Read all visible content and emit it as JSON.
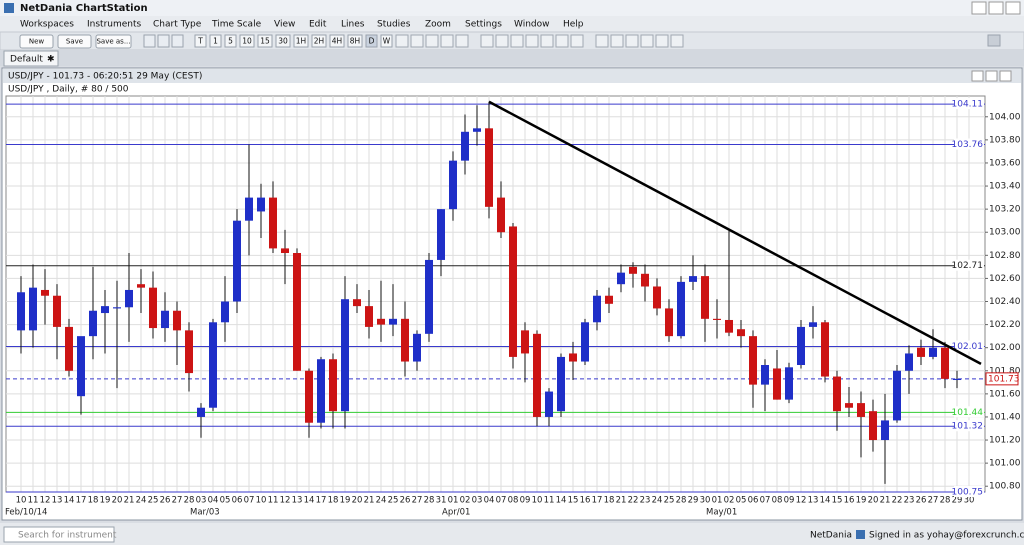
{
  "app": {
    "title": "NetDania ChartStation",
    "menu": [
      "Workspaces",
      "Instruments",
      "Chart Type",
      "Time Scale",
      "View",
      "Edit",
      "Lines",
      "Studies",
      "Zoom",
      "Settings",
      "Window",
      "Help"
    ],
    "buttons": [
      "New",
      "Save",
      "Save as..."
    ],
    "periods": [
      "T",
      "1",
      "5",
      "10",
      "15",
      "30",
      "1H",
      "2H",
      "4H",
      "8H",
      "D",
      "W",
      "M"
    ],
    "tab": "Default"
  },
  "window": {
    "title": "USD/JPY - 101.73 - 06:20:51  29 May (CEST)"
  },
  "chart_data": {
    "type": "candlestick",
    "subtitle": "USD/JPY , Daily, # 80 / 500",
    "categories": [
      "10",
      "11",
      "12",
      "13",
      "14",
      "17",
      "18",
      "19",
      "20",
      "21",
      "24",
      "25",
      "26",
      "27",
      "28",
      "03",
      "04",
      "05",
      "06",
      "07",
      "10",
      "11",
      "12",
      "13",
      "14",
      "17",
      "18",
      "19",
      "20",
      "21",
      "24",
      "25",
      "26",
      "27",
      "28",
      "31",
      "01",
      "02",
      "03",
      "04",
      "07",
      "08",
      "09",
      "10",
      "11",
      "14",
      "15",
      "16",
      "17",
      "18",
      "21",
      "22",
      "23",
      "24",
      "25",
      "28",
      "29",
      "30",
      "01",
      "02",
      "05",
      "06",
      "07",
      "08",
      "09",
      "12",
      "13",
      "14",
      "15",
      "16",
      "19",
      "20",
      "21",
      "22",
      "23",
      "26",
      "27",
      "28",
      "29",
      "30"
    ],
    "x_group_labels": [
      "Feb/10/14",
      null,
      null,
      null,
      null,
      null,
      null,
      null,
      null,
      null,
      null,
      null,
      null,
      null,
      null,
      "Mar/03",
      null,
      null,
      null,
      null,
      null,
      null,
      null,
      null,
      null,
      null,
      null,
      null,
      null,
      null,
      null,
      null,
      null,
      null,
      null,
      null,
      "Apr/01",
      null,
      null,
      null,
      null,
      null,
      null,
      null,
      null,
      null,
      null,
      null,
      null,
      null,
      null,
      null,
      null,
      null,
      null,
      null,
      null,
      null,
      "May/01",
      null,
      null,
      null,
      null,
      null,
      null,
      null,
      null,
      null,
      null,
      null,
      null,
      null,
      null,
      null,
      null,
      null,
      null,
      null,
      null,
      null
    ],
    "open": [
      102.15,
      102.15,
      102.5,
      102.45,
      102.18,
      101.58,
      102.1,
      102.3,
      102.34,
      102.35,
      102.55,
      102.52,
      102.17,
      102.32,
      102.15,
      101.4,
      101.48,
      102.22,
      102.4,
      103.1,
      103.18,
      103.3,
      102.86,
      102.82,
      101.8,
      101.35,
      101.9,
      101.45,
      102.42,
      102.36,
      102.25,
      102.2,
      102.25,
      101.88,
      102.12,
      102.76,
      103.2,
      103.62,
      103.87,
      103.9,
      103.3,
      103.05,
      102.15,
      102.12,
      101.4,
      101.45,
      101.95,
      101.88,
      102.22,
      102.45,
      102.55,
      102.7,
      102.64,
      102.53,
      102.34,
      102.1,
      102.57,
      102.62,
      102.25,
      102.24,
      102.16,
      102.1,
      101.68,
      101.82,
      101.55,
      101.85,
      102.18,
      102.22,
      101.75,
      101.52,
      101.52,
      101.45,
      101.2,
      101.37,
      101.8,
      102.0,
      101.92,
      102.0,
      101.72,
      null
    ],
    "high": [
      102.62,
      102.72,
      102.68,
      102.55,
      102.25,
      102.08,
      102.7,
      102.5,
      102.58,
      102.82,
      102.68,
      102.66,
      102.48,
      102.4,
      102.22,
      101.52,
      102.25,
      102.62,
      103.2,
      103.76,
      103.42,
      103.44,
      103.02,
      102.86,
      101.82,
      101.92,
      101.95,
      102.62,
      102.55,
      102.5,
      102.58,
      102.55,
      102.4,
      102.15,
      102.82,
      103.2,
      103.7,
      104.02,
      104.1,
      104.13,
      103.44,
      103.08,
      102.22,
      102.15,
      101.65,
      101.95,
      102.05,
      102.25,
      102.5,
      102.52,
      102.72,
      102.74,
      102.72,
      102.6,
      102.42,
      102.62,
      102.8,
      102.72,
      102.42,
      103.02,
      102.24,
      102.15,
      101.9,
      101.98,
      101.87,
      102.24,
      102.36,
      102.24,
      101.8,
      101.66,
      101.62,
      101.55,
      101.6,
      101.85,
      102.02,
      102.07,
      102.16,
      102.05,
      101.8,
      null
    ],
    "low": [
      101.95,
      102.0,
      102.2,
      101.9,
      101.75,
      101.42,
      101.9,
      101.95,
      101.65,
      102.05,
      102.3,
      102.08,
      102.05,
      101.85,
      101.62,
      101.22,
      101.45,
      102.05,
      102.3,
      102.8,
      102.95,
      102.82,
      102.55,
      101.8,
      101.22,
      101.3,
      101.3,
      101.3,
      102.3,
      102.08,
      102.05,
      102.1,
      101.75,
      101.8,
      102.05,
      102.62,
      103.1,
      103.5,
      103.75,
      103.12,
      102.95,
      101.82,
      101.7,
      101.32,
      101.32,
      101.4,
      101.72,
      101.85,
      102.15,
      102.3,
      102.48,
      102.52,
      102.4,
      102.28,
      102.05,
      102.08,
      102.5,
      102.05,
      102.08,
      102.1,
      102.0,
      101.48,
      101.45,
      101.55,
      101.52,
      101.82,
      102.08,
      101.7,
      101.28,
      101.4,
      101.05,
      101.1,
      100.82,
      101.35,
      101.6,
      101.85,
      101.9,
      101.65,
      101.65,
      null
    ],
    "close": [
      102.48,
      102.52,
      102.45,
      102.18,
      101.8,
      102.1,
      102.32,
      102.36,
      102.35,
      102.5,
      102.52,
      102.17,
      102.32,
      102.15,
      101.78,
      101.48,
      102.22,
      102.4,
      103.1,
      103.3,
      103.3,
      102.86,
      102.82,
      101.8,
      101.35,
      101.9,
      101.45,
      102.42,
      102.36,
      102.18,
      102.2,
      102.25,
      101.88,
      102.12,
      102.76,
      103.2,
      103.62,
      103.87,
      103.9,
      103.22,
      103.0,
      101.92,
      101.95,
      101.4,
      101.62,
      101.92,
      101.88,
      102.22,
      102.45,
      102.38,
      102.65,
      102.64,
      102.53,
      102.34,
      102.1,
      102.57,
      102.62,
      102.25,
      102.24,
      102.13,
      102.1,
      101.68,
      101.85,
      101.55,
      101.83,
      102.18,
      102.22,
      101.75,
      101.45,
      101.48,
      101.4,
      101.2,
      101.37,
      101.8,
      101.95,
      101.92,
      102.0,
      101.73,
      101.73,
      null
    ],
    "up_color": "#1f2fc8",
    "down_color": "#cc1414",
    "ylim": [
      100.75,
      104.18
    ],
    "yticks": [
      {
        "value": 100.8,
        "label": "100.80"
      },
      {
        "value": 101,
        "label": "101.00"
      },
      {
        "value": 101.2,
        "label": "101.20"
      },
      {
        "value": 101.4,
        "label": "101.40"
      },
      {
        "value": 101.6,
        "label": "101.60"
      },
      {
        "value": 101.8,
        "label": "101.80"
      },
      {
        "value": 102,
        "label": "102.00"
      },
      {
        "value": 102.2,
        "label": "102.20"
      },
      {
        "value": 102.4,
        "label": "102.40"
      },
      {
        "value": 102.6,
        "label": "102.60"
      },
      {
        "value": 102.8,
        "label": "102.80"
      },
      {
        "value": 103,
        "label": "103.00"
      },
      {
        "value": 103.2,
        "label": "103.20"
      },
      {
        "value": 103.4,
        "label": "103.40"
      },
      {
        "value": 103.6,
        "label": "103.60"
      },
      {
        "value": 103.8,
        "label": "103.80"
      },
      {
        "value": 104,
        "label": "104.00"
      }
    ],
    "grid": true,
    "levels": [
      {
        "value": 104.11,
        "color": "#3a3acc"
      },
      {
        "value": 103.76,
        "color": "#3a3acc"
      },
      {
        "value": 102.71,
        "color": "#222222"
      },
      {
        "value": 102.01,
        "color": "#3a3acc"
      },
      {
        "value": 101.44,
        "color": "#33cc33"
      },
      {
        "value": 101.32,
        "color": "#3a3acc"
      },
      {
        "value": 100.75,
        "color": "#3a3acc"
      }
    ],
    "last_price": 101.73,
    "trendline": {
      "x": [
        39,
        80
      ],
      "y": [
        104.13,
        101.86
      ],
      "color": "#000000"
    }
  },
  "status": {
    "search_placeholder": "Search for instrument",
    "brand": "NetDania",
    "signed_in": "Signed in as yohay@forexcrunch.com"
  }
}
